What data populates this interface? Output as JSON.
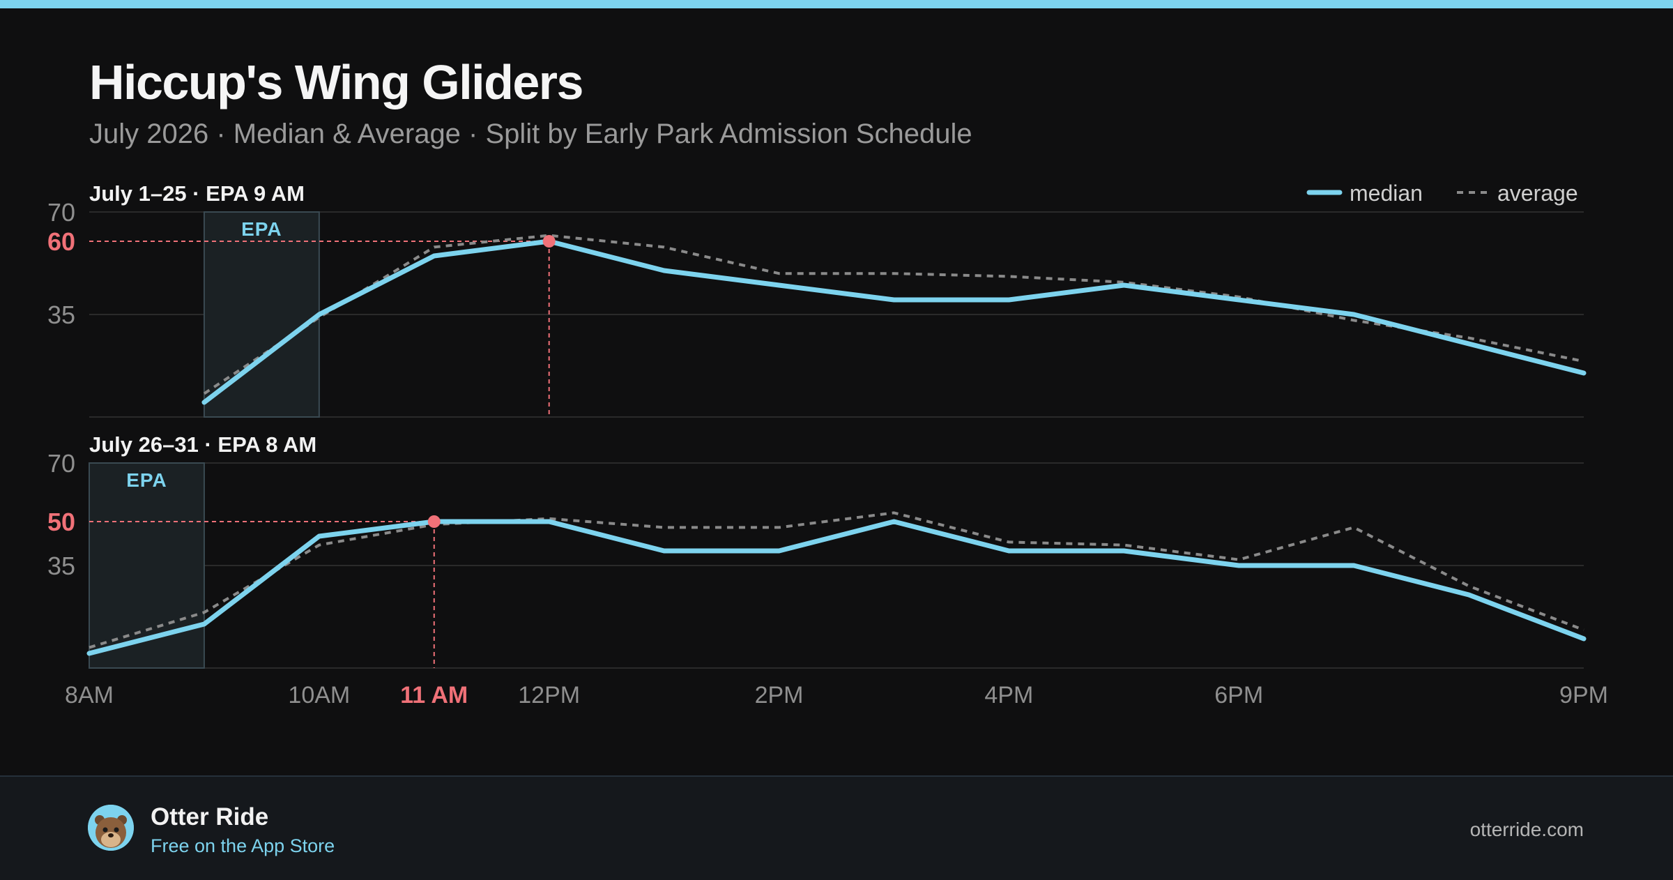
{
  "header": {
    "title": "Hiccup's Wing Gliders",
    "subtitle": "July 2026 · Median & Average · Split by Early Park Admission Schedule"
  },
  "legend": {
    "median": "median",
    "average": "average"
  },
  "colors": {
    "median": "#7dd3ee",
    "average": "#8a8a8a",
    "highlight": "#f07178",
    "epa_fill": "#1b2124",
    "epa_border": "#3a4a52",
    "grid": "#2a2a2a",
    "axis_text": "#8f8f8f"
  },
  "chart_data": [
    {
      "type": "line",
      "panel_title": "July 1–25 · EPA 9 AM",
      "x_hours": [
        9,
        10,
        11,
        12,
        13,
        14,
        15,
        16,
        17,
        18,
        19,
        20,
        21
      ],
      "xlim": [
        8,
        21
      ],
      "ylim": [
        0,
        70
      ],
      "ytick_labels": [
        "70",
        "35"
      ],
      "ytick_values": [
        70,
        35
      ],
      "epa_band": {
        "label": "EPA",
        "start": 9,
        "end": 10
      },
      "series": [
        {
          "name": "median",
          "values": [
            5,
            35,
            55,
            60,
            50,
            45,
            40,
            40,
            45,
            40,
            35,
            25,
            15
          ]
        },
        {
          "name": "average",
          "values": [
            8,
            34,
            58,
            62,
            58,
            49,
            49,
            48,
            46,
            41,
            33,
            27,
            19
          ]
        }
      ],
      "peak": {
        "value_label": "60",
        "value": 60,
        "hour": 12
      },
      "legend": "top-right"
    },
    {
      "type": "line",
      "panel_title": "July 26–31 · EPA 8 AM",
      "x_hours": [
        8,
        9,
        10,
        11,
        12,
        13,
        14,
        15,
        16,
        17,
        18,
        19,
        20,
        21
      ],
      "xlim": [
        8,
        21
      ],
      "ylim": [
        0,
        70
      ],
      "ytick_labels": [
        "70",
        "35"
      ],
      "ytick_values": [
        70,
        35
      ],
      "epa_band": {
        "label": "EPA",
        "start": 8,
        "end": 9
      },
      "series": [
        {
          "name": "median",
          "values": [
            5,
            15,
            45,
            50,
            50,
            40,
            40,
            50,
            40,
            40,
            35,
            35,
            25,
            10
          ]
        },
        {
          "name": "average",
          "values": [
            7,
            19,
            42,
            49,
            51,
            48,
            48,
            53,
            43,
            42,
            37,
            48,
            28,
            13
          ]
        }
      ],
      "peak": {
        "value_label": "50",
        "value": 50,
        "hour": 11
      }
    }
  ],
  "x_axis": {
    "labels": [
      {
        "label": "8AM",
        "hour": 8
      },
      {
        "label": "10AM",
        "hour": 10
      },
      {
        "label": "12PM",
        "hour": 12
      },
      {
        "label": "2PM",
        "hour": 14
      },
      {
        "label": "4PM",
        "hour": 16
      },
      {
        "label": "6PM",
        "hour": 18
      },
      {
        "label": "9PM",
        "hour": 21
      }
    ],
    "highlight": {
      "label": "11 AM",
      "hour": 11
    }
  },
  "footer": {
    "brand_name": "Otter Ride",
    "brand_tagline": "Free on the App Store",
    "website": "otterride.com"
  }
}
